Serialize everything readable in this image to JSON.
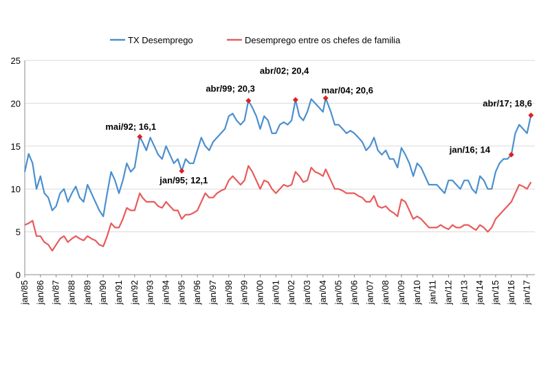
{
  "chart_data": {
    "type": "line",
    "ylim": [
      0,
      25
    ],
    "yticks": [
      0,
      5,
      10,
      15,
      20,
      25
    ],
    "xlim": [
      1985.0,
      2017.5
    ],
    "xtick_labels": [
      "jan/85",
      "jan/86",
      "jan/87",
      "jan/88",
      "jan/89",
      "jan/90",
      "jan/91",
      "jan/92",
      "jan/93",
      "jan/94",
      "jan/95",
      "jan/96",
      "jan/97",
      "jan/98",
      "jan/99",
      "jan/00",
      "jan/01",
      "jan/02",
      "jan/03",
      "jan/04",
      "jan/05",
      "jan/06",
      "jan/07",
      "jan/08",
      "jan/09",
      "jan/10",
      "jan/11",
      "jan/12",
      "jan/13",
      "jan/14",
      "jan/15",
      "jan/16",
      "jan/17"
    ],
    "grid": "horizontal",
    "legend_position": "top",
    "series": [
      {
        "name": "TX Desemprego",
        "color": "#4a8fd0",
        "points": [
          [
            1985.0,
            12.0
          ],
          [
            1985.25,
            14.1
          ],
          [
            1985.5,
            13.0
          ],
          [
            1985.75,
            10.0
          ],
          [
            1986.0,
            11.5
          ],
          [
            1986.25,
            9.5
          ],
          [
            1986.5,
            9.0
          ],
          [
            1986.75,
            7.5
          ],
          [
            1987.0,
            8.0
          ],
          [
            1987.25,
            9.5
          ],
          [
            1987.5,
            10.0
          ],
          [
            1987.75,
            8.5
          ],
          [
            1988.0,
            9.5
          ],
          [
            1988.25,
            10.3
          ],
          [
            1988.5,
            9.0
          ],
          [
            1988.75,
            8.5
          ],
          [
            1989.0,
            10.5
          ],
          [
            1989.25,
            9.5
          ],
          [
            1989.5,
            8.5
          ],
          [
            1989.75,
            7.5
          ],
          [
            1990.0,
            6.8
          ],
          [
            1990.25,
            9.5
          ],
          [
            1990.5,
            12.0
          ],
          [
            1990.75,
            11.0
          ],
          [
            1991.0,
            9.5
          ],
          [
            1991.25,
            11.0
          ],
          [
            1991.5,
            13.0
          ],
          [
            1991.75,
            12.0
          ],
          [
            1992.0,
            12.5
          ],
          [
            1992.33,
            16.1
          ],
          [
            1992.5,
            15.5
          ],
          [
            1992.75,
            14.5
          ],
          [
            1993.0,
            16.0
          ],
          [
            1993.25,
            15.0
          ],
          [
            1993.5,
            14.0
          ],
          [
            1993.75,
            13.5
          ],
          [
            1994.0,
            15.0
          ],
          [
            1994.25,
            14.0
          ],
          [
            1994.5,
            13.0
          ],
          [
            1994.75,
            13.5
          ],
          [
            1995.0,
            12.1
          ],
          [
            1995.25,
            13.5
          ],
          [
            1995.5,
            13.0
          ],
          [
            1995.75,
            13.0
          ],
          [
            1996.0,
            14.5
          ],
          [
            1996.25,
            16.0
          ],
          [
            1996.5,
            15.0
          ],
          [
            1996.75,
            14.5
          ],
          [
            1997.0,
            15.5
          ],
          [
            1997.25,
            16.0
          ],
          [
            1997.5,
            16.5
          ],
          [
            1997.75,
            17.0
          ],
          [
            1998.0,
            18.5
          ],
          [
            1998.25,
            18.8
          ],
          [
            1998.5,
            18.0
          ],
          [
            1998.75,
            17.5
          ],
          [
            1999.0,
            18.0
          ],
          [
            1999.25,
            20.3
          ],
          [
            1999.5,
            19.5
          ],
          [
            1999.75,
            18.5
          ],
          [
            2000.0,
            17.0
          ],
          [
            2000.25,
            18.5
          ],
          [
            2000.5,
            18.0
          ],
          [
            2000.75,
            16.5
          ],
          [
            2001.0,
            16.5
          ],
          [
            2001.25,
            17.5
          ],
          [
            2001.5,
            17.8
          ],
          [
            2001.75,
            17.5
          ],
          [
            2002.0,
            18.0
          ],
          [
            2002.25,
            20.4
          ],
          [
            2002.5,
            18.5
          ],
          [
            2002.75,
            18.0
          ],
          [
            2003.0,
            19.0
          ],
          [
            2003.25,
            20.5
          ],
          [
            2003.5,
            20.0
          ],
          [
            2003.75,
            19.5
          ],
          [
            2004.0,
            19.0
          ],
          [
            2004.17,
            20.6
          ],
          [
            2004.5,
            19.0
          ],
          [
            2004.75,
            17.5
          ],
          [
            2005.0,
            17.5
          ],
          [
            2005.25,
            17.0
          ],
          [
            2005.5,
            16.5
          ],
          [
            2005.75,
            16.8
          ],
          [
            2006.0,
            16.5
          ],
          [
            2006.25,
            16.0
          ],
          [
            2006.5,
            15.5
          ],
          [
            2006.75,
            14.5
          ],
          [
            2007.0,
            15.0
          ],
          [
            2007.25,
            16.0
          ],
          [
            2007.5,
            14.5
          ],
          [
            2007.75,
            14.0
          ],
          [
            2008.0,
            14.5
          ],
          [
            2008.25,
            13.5
          ],
          [
            2008.5,
            13.5
          ],
          [
            2008.75,
            12.5
          ],
          [
            2009.0,
            14.8
          ],
          [
            2009.25,
            14.0
          ],
          [
            2009.5,
            13.0
          ],
          [
            2009.75,
            11.5
          ],
          [
            2010.0,
            13.0
          ],
          [
            2010.25,
            12.5
          ],
          [
            2010.5,
            11.5
          ],
          [
            2010.75,
            10.5
          ],
          [
            2011.0,
            10.5
          ],
          [
            2011.25,
            10.5
          ],
          [
            2011.5,
            10.0
          ],
          [
            2011.75,
            9.5
          ],
          [
            2012.0,
            11.0
          ],
          [
            2012.25,
            11.0
          ],
          [
            2012.5,
            10.5
          ],
          [
            2012.75,
            10.0
          ],
          [
            2013.0,
            11.0
          ],
          [
            2013.25,
            11.0
          ],
          [
            2013.5,
            10.0
          ],
          [
            2013.75,
            9.5
          ],
          [
            2014.0,
            11.5
          ],
          [
            2014.25,
            11.0
          ],
          [
            2014.5,
            10.0
          ],
          [
            2014.75,
            10.0
          ],
          [
            2015.0,
            12.0
          ],
          [
            2015.25,
            13.0
          ],
          [
            2015.5,
            13.5
          ],
          [
            2015.75,
            13.5
          ],
          [
            2016.0,
            14.0
          ],
          [
            2016.25,
            16.5
          ],
          [
            2016.5,
            17.5
          ],
          [
            2016.75,
            17.0
          ],
          [
            2017.0,
            16.5
          ],
          [
            2017.25,
            18.6
          ]
        ]
      },
      {
        "name": "Desemprego entre os chefes de familia",
        "color": "#e85a5a",
        "points": [
          [
            1985.0,
            5.8
          ],
          [
            1985.25,
            6.0
          ],
          [
            1985.5,
            6.3
          ],
          [
            1985.75,
            4.5
          ],
          [
            1986.0,
            4.5
          ],
          [
            1986.25,
            3.8
          ],
          [
            1986.5,
            3.5
          ],
          [
            1986.75,
            2.8
          ],
          [
            1987.0,
            3.5
          ],
          [
            1987.25,
            4.2
          ],
          [
            1987.5,
            4.5
          ],
          [
            1987.75,
            3.8
          ],
          [
            1988.0,
            4.2
          ],
          [
            1988.25,
            4.5
          ],
          [
            1988.5,
            4.2
          ],
          [
            1988.75,
            4.0
          ],
          [
            1989.0,
            4.5
          ],
          [
            1989.25,
            4.2
          ],
          [
            1989.5,
            4.0
          ],
          [
            1989.75,
            3.5
          ],
          [
            1990.0,
            3.3
          ],
          [
            1990.25,
            4.5
          ],
          [
            1990.5,
            6.0
          ],
          [
            1990.75,
            5.5
          ],
          [
            1991.0,
            5.5
          ],
          [
            1991.25,
            6.5
          ],
          [
            1991.5,
            7.8
          ],
          [
            1991.75,
            7.5
          ],
          [
            1992.0,
            7.5
          ],
          [
            1992.33,
            9.5
          ],
          [
            1992.5,
            9.0
          ],
          [
            1992.75,
            8.5
          ],
          [
            1993.0,
            8.5
          ],
          [
            1993.25,
            8.5
          ],
          [
            1993.5,
            8.0
          ],
          [
            1993.75,
            7.8
          ],
          [
            1994.0,
            8.5
          ],
          [
            1994.25,
            8.0
          ],
          [
            1994.5,
            7.5
          ],
          [
            1994.75,
            7.5
          ],
          [
            1995.0,
            6.5
          ],
          [
            1995.25,
            7.0
          ],
          [
            1995.5,
            7.0
          ],
          [
            1995.75,
            7.2
          ],
          [
            1996.0,
            7.5
          ],
          [
            1996.25,
            8.5
          ],
          [
            1996.5,
            9.5
          ],
          [
            1996.75,
            9.0
          ],
          [
            1997.0,
            9.0
          ],
          [
            1997.25,
            9.5
          ],
          [
            1997.5,
            9.8
          ],
          [
            1997.75,
            10.0
          ],
          [
            1998.0,
            11.0
          ],
          [
            1998.25,
            11.5
          ],
          [
            1998.5,
            11.0
          ],
          [
            1998.75,
            10.5
          ],
          [
            1999.0,
            11.0
          ],
          [
            1999.25,
            12.7
          ],
          [
            1999.5,
            12.0
          ],
          [
            1999.75,
            11.0
          ],
          [
            2000.0,
            10.0
          ],
          [
            2000.25,
            11.0
          ],
          [
            2000.5,
            10.8
          ],
          [
            2000.75,
            10.0
          ],
          [
            2001.0,
            9.5
          ],
          [
            2001.25,
            10.0
          ],
          [
            2001.5,
            10.5
          ],
          [
            2001.75,
            10.3
          ],
          [
            2002.0,
            10.5
          ],
          [
            2002.25,
            12.0
          ],
          [
            2002.5,
            11.5
          ],
          [
            2002.75,
            10.8
          ],
          [
            2003.0,
            11.0
          ],
          [
            2003.25,
            12.5
          ],
          [
            2003.5,
            12.0
          ],
          [
            2003.75,
            11.8
          ],
          [
            2004.0,
            11.5
          ],
          [
            2004.17,
            12.3
          ],
          [
            2004.5,
            11.0
          ],
          [
            2004.75,
            10.0
          ],
          [
            2005.0,
            10.0
          ],
          [
            2005.25,
            9.8
          ],
          [
            2005.5,
            9.5
          ],
          [
            2005.75,
            9.5
          ],
          [
            2006.0,
            9.5
          ],
          [
            2006.25,
            9.2
          ],
          [
            2006.5,
            9.0
          ],
          [
            2006.75,
            8.5
          ],
          [
            2007.0,
            8.5
          ],
          [
            2007.25,
            9.2
          ],
          [
            2007.5,
            8.0
          ],
          [
            2007.75,
            7.8
          ],
          [
            2008.0,
            8.0
          ],
          [
            2008.25,
            7.5
          ],
          [
            2008.5,
            7.2
          ],
          [
            2008.75,
            6.8
          ],
          [
            2009.0,
            8.8
          ],
          [
            2009.25,
            8.5
          ],
          [
            2009.5,
            7.5
          ],
          [
            2009.75,
            6.5
          ],
          [
            2010.0,
            6.8
          ],
          [
            2010.25,
            6.5
          ],
          [
            2010.5,
            6.0
          ],
          [
            2010.75,
            5.5
          ],
          [
            2011.0,
            5.5
          ],
          [
            2011.25,
            5.5
          ],
          [
            2011.5,
            5.8
          ],
          [
            2011.75,
            5.5
          ],
          [
            2012.0,
            5.3
          ],
          [
            2012.25,
            5.8
          ],
          [
            2012.5,
            5.5
          ],
          [
            2012.75,
            5.5
          ],
          [
            2013.0,
            5.8
          ],
          [
            2013.25,
            5.8
          ],
          [
            2013.5,
            5.5
          ],
          [
            2013.75,
            5.2
          ],
          [
            2014.0,
            5.8
          ],
          [
            2014.25,
            5.5
          ],
          [
            2014.5,
            5.0
          ],
          [
            2014.75,
            5.5
          ],
          [
            2015.0,
            6.5
          ],
          [
            2015.25,
            7.0
          ],
          [
            2015.5,
            7.5
          ],
          [
            2015.75,
            8.0
          ],
          [
            2016.0,
            8.5
          ],
          [
            2016.25,
            9.5
          ],
          [
            2016.5,
            10.5
          ],
          [
            2016.75,
            10.3
          ],
          [
            2017.0,
            10.0
          ],
          [
            2017.25,
            10.8
          ]
        ]
      }
    ],
    "annotations": [
      {
        "label": "mai/92; 16,1",
        "x": 1992.33,
        "y": 16.1
      },
      {
        "label": "jan/95; 12,1",
        "x": 1995.0,
        "y": 12.1
      },
      {
        "label": "abr/99; 20,3",
        "x": 1999.25,
        "y": 20.3
      },
      {
        "label": "abr/02; 20,4",
        "x": 2002.25,
        "y": 20.4
      },
      {
        "label": "mar/04; 20,6",
        "x": 2004.17,
        "y": 20.6
      },
      {
        "label": "jan/16; 14",
        "x": 2016.0,
        "y": 14.0
      },
      {
        "label": "abr/17; 18,6",
        "x": 2017.25,
        "y": 18.6
      }
    ],
    "annotation_marker_color": "#e02020"
  }
}
